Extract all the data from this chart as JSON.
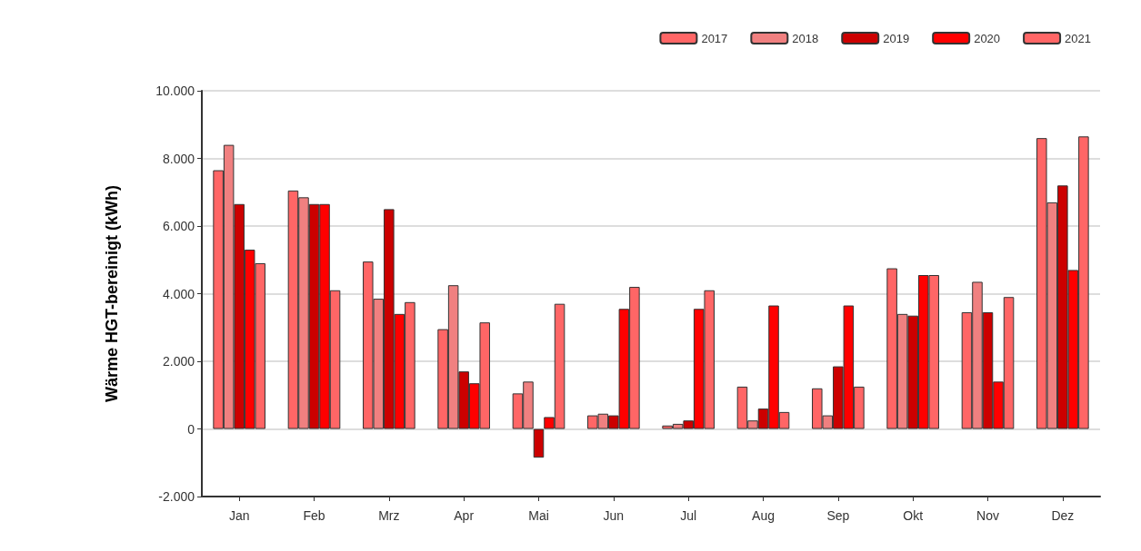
{
  "chart_data": {
    "type": "bar",
    "ylabel": "Wärme HGT-bereinigt (kWh)",
    "categories": [
      "Jan",
      "Feb",
      "Mrz",
      "Apr",
      "Mai",
      "Jun",
      "Jul",
      "Aug",
      "Sep",
      "Okt",
      "Nov",
      "Dez"
    ],
    "series": [
      {
        "name": "2017",
        "color": "#ff6666",
        "values": [
          7650,
          7050,
          4950,
          2950,
          1050,
          400,
          100,
          1250,
          1200,
          4750,
          3450,
          8600
        ]
      },
      {
        "name": "2018",
        "color": "#f08080",
        "values": [
          8400,
          6850,
          3850,
          4250,
          1400,
          450,
          150,
          250,
          400,
          3400,
          4350,
          6700
        ]
      },
      {
        "name": "2019",
        "color": "#cc0000",
        "values": [
          6650,
          6650,
          6500,
          1700,
          -850,
          400,
          250,
          600,
          1850,
          3350,
          3450,
          7200
        ]
      },
      {
        "name": "2020",
        "color": "#ff0000",
        "values": [
          5300,
          6650,
          3400,
          1350,
          350,
          3550,
          3550,
          3650,
          3650,
          4550,
          1400,
          4700
        ]
      },
      {
        "name": "2021",
        "color": "#ff6666",
        "values": [
          4900,
          4100,
          3750,
          3150,
          3700,
          4200,
          4100,
          500,
          1250,
          4550,
          3900,
          8650
        ]
      }
    ],
    "ylim": [
      -2000,
      10000
    ],
    "yticks": [
      {
        "value": -2000,
        "label": "-2.000"
      },
      {
        "value": 0,
        "label": "0"
      },
      {
        "value": 2000,
        "label": "2.000"
      },
      {
        "value": 4000,
        "label": "4.000"
      },
      {
        "value": 6000,
        "label": "6.000"
      },
      {
        "value": 8000,
        "label": "8.000"
      },
      {
        "value": 10000,
        "label": "10.000"
      }
    ],
    "grid": "y",
    "legend": "top right"
  }
}
